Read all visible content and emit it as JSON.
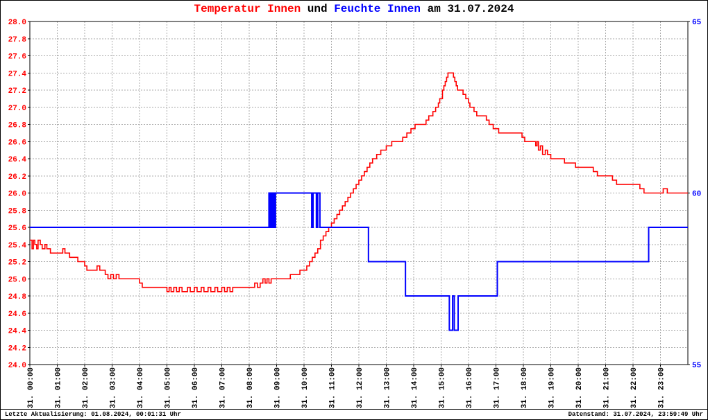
{
  "title": {
    "temp": "Temperatur Innen",
    "mid": " und ",
    "hum": "Feuchte Innen",
    "date": " am 31.07.2024"
  },
  "footer": {
    "left": "Letzte Aktualisierung: 01.08.2024, 00:01:31 Uhr",
    "right": "Datenstand: 31.07.2024, 23:59:49 Uhr"
  },
  "chart_data": {
    "type": "line",
    "title": "Temperatur Innen und Feuchte Innen am 31.07.2024",
    "xlabel": "",
    "ylabel": "",
    "x_range_hours": [
      0,
      24
    ],
    "x_tick_labels": [
      "31. 00:00",
      "31. 01:00",
      "31. 02:00",
      "31. 03:00",
      "31. 04:00",
      "31. 05:00",
      "31. 06:00",
      "31. 07:00",
      "31. 08:00",
      "31. 09:00",
      "31. 10:00",
      "31. 11:00",
      "31. 12:00",
      "31. 13:00",
      "31. 14:00",
      "31. 15:00",
      "31. 16:00",
      "31. 17:00",
      "31. 18:00",
      "31. 19:00",
      "31. 20:00",
      "31. 21:00",
      "31. 22:00",
      "31. 23:00"
    ],
    "left_axis": {
      "min": 24.0,
      "max": 28.0,
      "step": 0.2,
      "label_decimals": 1,
      "color": "#ff0000"
    },
    "right_axis": {
      "min": 55,
      "max": 65,
      "ticks": [
        55,
        60,
        65
      ],
      "color": "#0000ff"
    },
    "grid": {
      "on": true,
      "color": "#aaaaaa",
      "dash": "2,2"
    },
    "legend": "none",
    "series": [
      {
        "name": "Temperatur Innen",
        "key": "temperature-line",
        "axis": "left",
        "mode": "step",
        "color": "#ff0000",
        "stroke_width": 1.6,
        "points": [
          [
            0.0,
            25.45
          ],
          [
            0.08,
            25.35
          ],
          [
            0.13,
            25.45
          ],
          [
            0.18,
            25.4
          ],
          [
            0.25,
            25.35
          ],
          [
            0.3,
            25.45
          ],
          [
            0.38,
            25.4
          ],
          [
            0.45,
            25.35
          ],
          [
            0.55,
            25.4
          ],
          [
            0.62,
            25.35
          ],
          [
            0.75,
            25.3
          ],
          [
            1.1,
            25.3
          ],
          [
            1.2,
            25.35
          ],
          [
            1.28,
            25.3
          ],
          [
            1.45,
            25.25
          ],
          [
            1.75,
            25.2
          ],
          [
            2.0,
            25.15
          ],
          [
            2.08,
            25.1
          ],
          [
            2.45,
            25.15
          ],
          [
            2.55,
            25.1
          ],
          [
            2.75,
            25.05
          ],
          [
            2.85,
            25.0
          ],
          [
            2.95,
            25.05
          ],
          [
            3.05,
            25.0
          ],
          [
            3.15,
            25.05
          ],
          [
            3.25,
            25.0
          ],
          [
            4.0,
            24.95
          ],
          [
            4.1,
            24.9
          ],
          [
            5.0,
            24.85
          ],
          [
            5.08,
            24.9
          ],
          [
            5.15,
            24.85
          ],
          [
            5.25,
            24.9
          ],
          [
            5.35,
            24.85
          ],
          [
            5.45,
            24.9
          ],
          [
            5.55,
            24.85
          ],
          [
            5.75,
            24.9
          ],
          [
            5.85,
            24.85
          ],
          [
            6.0,
            24.9
          ],
          [
            6.1,
            24.85
          ],
          [
            6.25,
            24.9
          ],
          [
            6.35,
            24.85
          ],
          [
            6.5,
            24.9
          ],
          [
            6.6,
            24.85
          ],
          [
            6.75,
            24.9
          ],
          [
            6.85,
            24.85
          ],
          [
            7.0,
            24.9
          ],
          [
            7.1,
            24.85
          ],
          [
            7.2,
            24.9
          ],
          [
            7.3,
            24.85
          ],
          [
            7.4,
            24.9
          ],
          [
            8.2,
            24.95
          ],
          [
            8.3,
            24.9
          ],
          [
            8.4,
            24.95
          ],
          [
            8.5,
            25.0
          ],
          [
            8.58,
            24.95
          ],
          [
            8.65,
            25.0
          ],
          [
            8.72,
            24.95
          ],
          [
            8.8,
            25.0
          ],
          [
            9.5,
            25.05
          ],
          [
            9.85,
            25.1
          ],
          [
            10.1,
            25.15
          ],
          [
            10.2,
            25.2
          ],
          [
            10.3,
            25.25
          ],
          [
            10.4,
            25.3
          ],
          [
            10.5,
            25.35
          ],
          [
            10.6,
            25.45
          ],
          [
            10.7,
            25.5
          ],
          [
            10.8,
            25.55
          ],
          [
            10.9,
            25.6
          ],
          [
            11.0,
            25.65
          ],
          [
            11.1,
            25.7
          ],
          [
            11.2,
            25.75
          ],
          [
            11.3,
            25.8
          ],
          [
            11.4,
            25.85
          ],
          [
            11.5,
            25.9
          ],
          [
            11.6,
            25.95
          ],
          [
            11.7,
            26.0
          ],
          [
            11.8,
            26.05
          ],
          [
            11.9,
            26.1
          ],
          [
            12.0,
            26.15
          ],
          [
            12.1,
            26.2
          ],
          [
            12.2,
            26.25
          ],
          [
            12.3,
            26.3
          ],
          [
            12.4,
            26.35
          ],
          [
            12.5,
            26.4
          ],
          [
            12.65,
            26.45
          ],
          [
            12.8,
            26.5
          ],
          [
            13.0,
            26.55
          ],
          [
            13.2,
            26.6
          ],
          [
            13.6,
            26.65
          ],
          [
            13.75,
            26.7
          ],
          [
            13.9,
            26.75
          ],
          [
            14.05,
            26.8
          ],
          [
            14.45,
            26.85
          ],
          [
            14.55,
            26.9
          ],
          [
            14.7,
            26.95
          ],
          [
            14.8,
            27.0
          ],
          [
            14.9,
            27.05
          ],
          [
            14.95,
            27.1
          ],
          [
            15.05,
            27.2
          ],
          [
            15.1,
            27.25
          ],
          [
            15.15,
            27.3
          ],
          [
            15.2,
            27.35
          ],
          [
            15.25,
            27.4
          ],
          [
            15.45,
            27.35
          ],
          [
            15.5,
            27.3
          ],
          [
            15.55,
            27.25
          ],
          [
            15.6,
            27.2
          ],
          [
            15.8,
            27.15
          ],
          [
            15.9,
            27.1
          ],
          [
            16.0,
            27.05
          ],
          [
            16.05,
            27.0
          ],
          [
            16.2,
            26.95
          ],
          [
            16.3,
            26.9
          ],
          [
            16.65,
            26.85
          ],
          [
            16.75,
            26.8
          ],
          [
            16.9,
            26.75
          ],
          [
            17.1,
            26.7
          ],
          [
            17.95,
            26.65
          ],
          [
            18.05,
            26.6
          ],
          [
            18.45,
            26.55
          ],
          [
            18.5,
            26.6
          ],
          [
            18.55,
            26.5
          ],
          [
            18.62,
            26.55
          ],
          [
            18.7,
            26.45
          ],
          [
            18.8,
            26.5
          ],
          [
            18.88,
            26.45
          ],
          [
            19.0,
            26.4
          ],
          [
            19.5,
            26.35
          ],
          [
            19.9,
            26.3
          ],
          [
            20.55,
            26.25
          ],
          [
            20.7,
            26.2
          ],
          [
            21.25,
            26.15
          ],
          [
            21.4,
            26.1
          ],
          [
            22.25,
            26.05
          ],
          [
            22.4,
            26.0
          ],
          [
            23.1,
            26.05
          ],
          [
            23.25,
            26.0
          ],
          [
            24.0,
            26.0
          ]
        ]
      },
      {
        "name": "Feuchte Innen",
        "key": "humidity-line",
        "axis": "right",
        "mode": "step",
        "color": "#0000ff",
        "stroke_width": 2,
        "points": [
          [
            0.0,
            59
          ],
          [
            8.72,
            60
          ],
          [
            8.76,
            59
          ],
          [
            8.8,
            60
          ],
          [
            8.84,
            59
          ],
          [
            8.88,
            60
          ],
          [
            8.92,
            59
          ],
          [
            8.96,
            60
          ],
          [
            10.28,
            59
          ],
          [
            10.33,
            60
          ],
          [
            10.45,
            59
          ],
          [
            10.5,
            60
          ],
          [
            10.58,
            59
          ],
          [
            12.35,
            58
          ],
          [
            13.7,
            57
          ],
          [
            15.3,
            56
          ],
          [
            15.42,
            57
          ],
          [
            15.48,
            56
          ],
          [
            15.62,
            57
          ],
          [
            17.05,
            58
          ],
          [
            22.57,
            59
          ],
          [
            24.0,
            59
          ]
        ]
      }
    ]
  }
}
